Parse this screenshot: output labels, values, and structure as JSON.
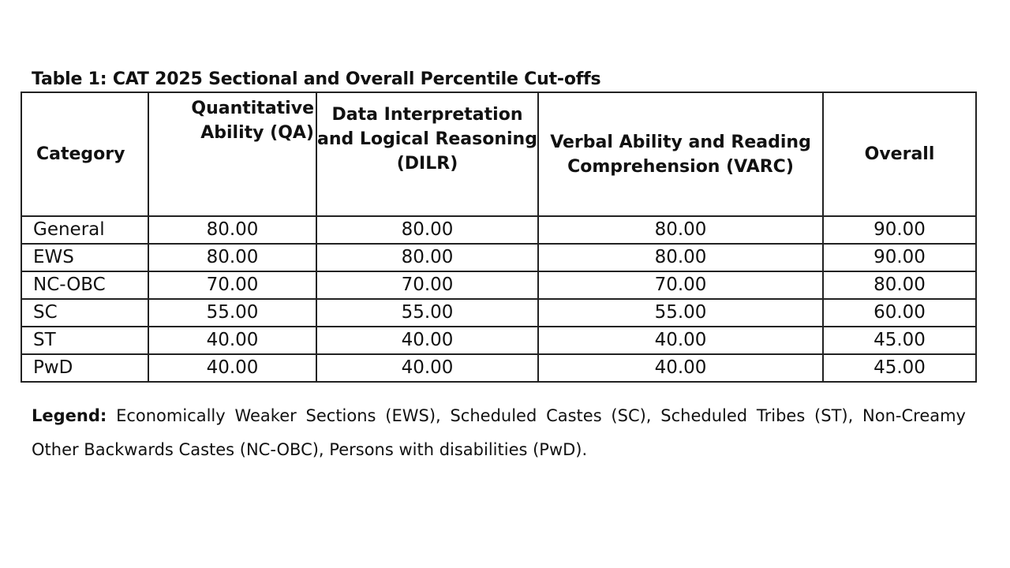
{
  "document": {
    "title": "Table 1: CAT 2025 Sectional and Overall Percentile Cut-offs",
    "legend_label": "Legend:",
    "legend_text": "Economically Weaker Sections (EWS), Scheduled Castes (SC), Scheduled Tribes (ST), Non-Creamy Other Backwards Castes (NC-OBC), Persons with disabilities (PwD)."
  },
  "table": {
    "headers": {
      "category": "Category",
      "qa": "Quantitative Ability (QA)",
      "dilr": "Data Interpretation and Logical Reasoning (DILR)",
      "varc": "Verbal Ability and Reading Comprehension (VARC)",
      "overall": "Overall"
    },
    "rows": [
      {
        "category": "General",
        "qa": "80.00",
        "dilr": "80.00",
        "varc": "80.00",
        "overall": "90.00"
      },
      {
        "category": "EWS",
        "qa": "80.00",
        "dilr": "80.00",
        "varc": "80.00",
        "overall": "90.00"
      },
      {
        "category": "NC-OBC",
        "qa": "70.00",
        "dilr": "70.00",
        "varc": "70.00",
        "overall": "80.00"
      },
      {
        "category": "SC",
        "qa": "55.00",
        "dilr": "55.00",
        "varc": "55.00",
        "overall": "60.00"
      },
      {
        "category": "ST",
        "qa": "40.00",
        "dilr": "40.00",
        "varc": "40.00",
        "overall": "45.00"
      },
      {
        "category": "PwD",
        "qa": "40.00",
        "dilr": "40.00",
        "varc": "40.00",
        "overall": "45.00"
      }
    ]
  }
}
